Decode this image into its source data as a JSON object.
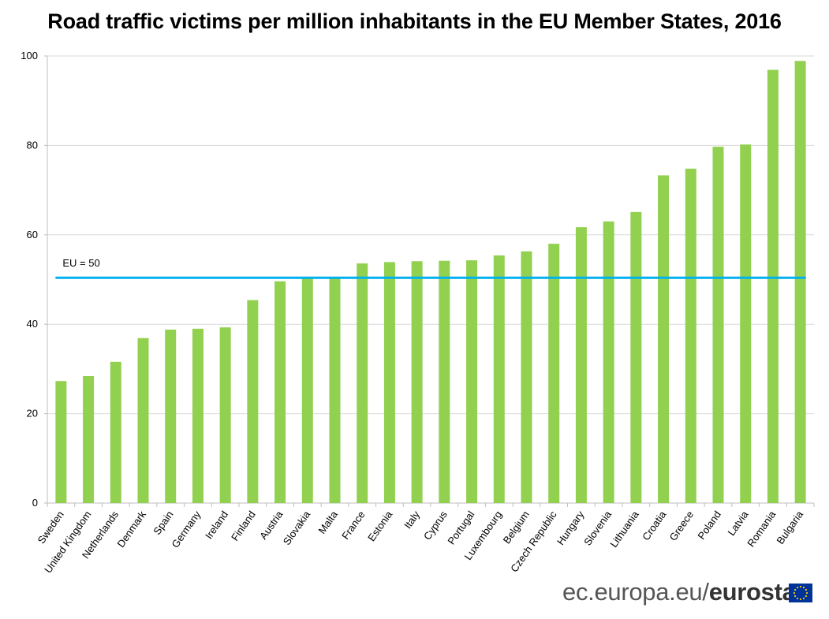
{
  "title": "Road traffic victims per million inhabitants in the EU Member States, 2016",
  "brand": {
    "site": "ec.europa.eu/",
    "name": "eurostat"
  },
  "colors": {
    "bar": "#92d050",
    "reference_line": "#00b0f0",
    "grid": "#d9d9d9",
    "flag_blue": "#003399",
    "flag_star": "#ffcc00"
  },
  "chart_data": {
    "type": "bar",
    "title": "Road traffic victims per million inhabitants in the EU Member States, 2016",
    "xlabel": "",
    "ylabel": "",
    "ylim": [
      0,
      100
    ],
    "yticks": [
      0,
      20,
      40,
      60,
      80,
      100
    ],
    "grid": true,
    "categories": [
      "Sweden",
      "United Kingdom",
      "Netherlands",
      "Denmark",
      "Spain",
      "Germany",
      "Ireland",
      "Finland",
      "Austria",
      "Slovakia",
      "Malta",
      "France",
      "Estonia",
      "Italy",
      "Cyprus",
      "Portugal",
      "Luxembourg",
      "Belgium",
      "Czech Republic",
      "Hungary",
      "Slovenia",
      "Lithuania",
      "Croatia",
      "Greece",
      "Poland",
      "Latvia",
      "Romania",
      "Bulgaria"
    ],
    "values": [
      27.3,
      28.4,
      31.6,
      36.9,
      38.8,
      39.0,
      39.3,
      45.4,
      49.6,
      50.3,
      50.4,
      53.6,
      53.9,
      54.1,
      54.2,
      54.3,
      55.4,
      56.3,
      58.0,
      61.7,
      63.0,
      65.1,
      73.3,
      74.8,
      79.7,
      80.2,
      96.9,
      98.9
    ],
    "reference_line": {
      "label": "EU = 50",
      "value": 50.4
    }
  }
}
